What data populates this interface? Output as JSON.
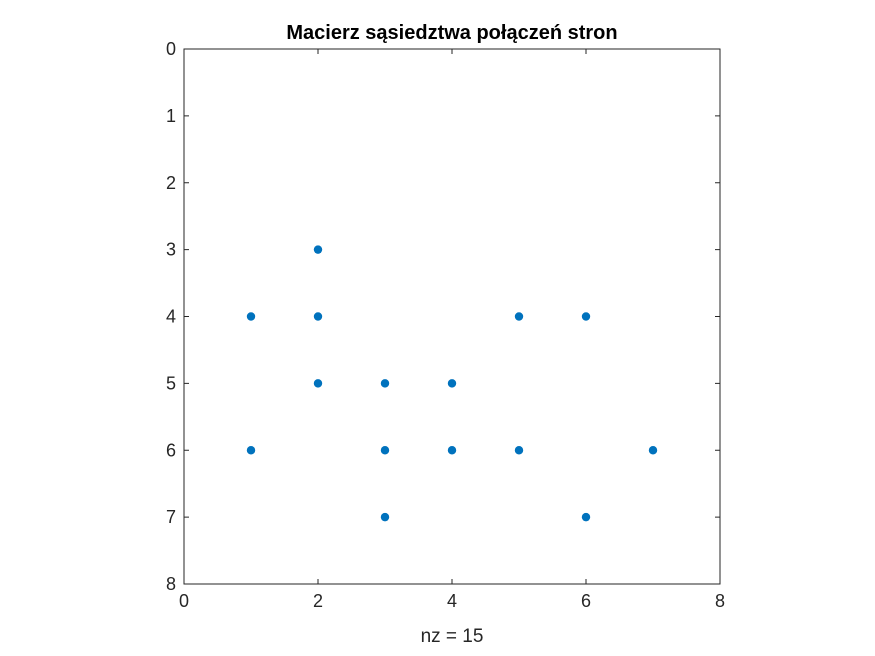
{
  "chart_data": {
    "type": "scatter",
    "title": "Macierz sąsiedztwa połączeń stron",
    "xlabel": "nz = 15",
    "ylabel": "",
    "xlim": [
      0,
      8
    ],
    "ylim": [
      0,
      8
    ],
    "y_reversed": true,
    "xticks": [
      "0",
      "2",
      "4",
      "6",
      "8"
    ],
    "yticks": [
      "0",
      "1",
      "2",
      "3",
      "4",
      "5",
      "6",
      "7",
      "8"
    ],
    "grid": false,
    "marker_color": "#0072BD",
    "points": [
      {
        "x": 1,
        "y": 4
      },
      {
        "x": 1,
        "y": 6
      },
      {
        "x": 2,
        "y": 3
      },
      {
        "x": 2,
        "y": 4
      },
      {
        "x": 2,
        "y": 5
      },
      {
        "x": 3,
        "y": 5
      },
      {
        "x": 3,
        "y": 6
      },
      {
        "x": 3,
        "y": 7
      },
      {
        "x": 4,
        "y": 5
      },
      {
        "x": 4,
        "y": 6
      },
      {
        "x": 5,
        "y": 4
      },
      {
        "x": 5,
        "y": 6
      },
      {
        "x": 6,
        "y": 4
      },
      {
        "x": 6,
        "y": 7
      },
      {
        "x": 7,
        "y": 6
      }
    ]
  }
}
